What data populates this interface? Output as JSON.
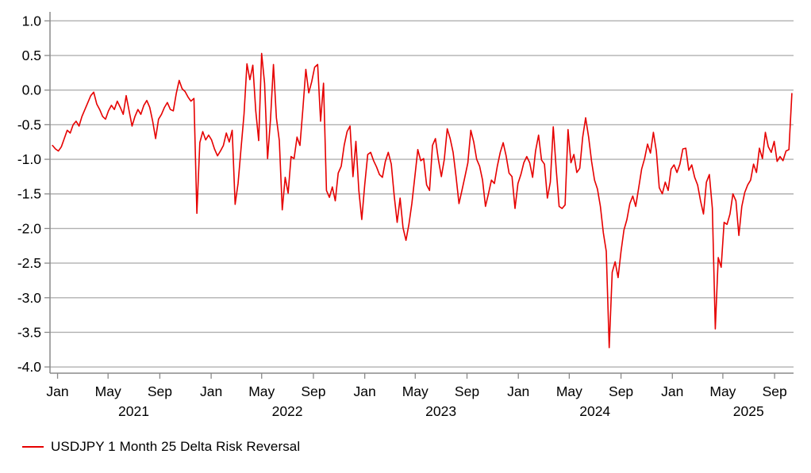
{
  "chart_data": {
    "type": "line",
    "title": "",
    "xlabel": "",
    "ylabel": "",
    "grid": "horizontal",
    "ylim": [
      -4.09,
      1.13
    ],
    "x_domain": [
      "2020-12-14",
      "2025-10-16"
    ],
    "yticks": {
      "values": [
        1.0,
        0.5,
        0.0,
        -0.5,
        -1.0,
        -1.5,
        -2.0,
        -2.5,
        -3.0,
        -3.5,
        -4.0
      ],
      "labels": [
        "1.0",
        "0.5",
        "0.0",
        "-0.5",
        "-1.0",
        "-1.5",
        "-2.0",
        "-2.5",
        "-3.0",
        "-3.5",
        "-4.0"
      ]
    },
    "xticks": [
      {
        "date": "2021-01-01",
        "label": "Jan"
      },
      {
        "date": "2021-05-01",
        "label": "May"
      },
      {
        "date": "2021-09-01",
        "label": "Sep"
      },
      {
        "date": "2022-01-01",
        "label": "Jan"
      },
      {
        "date": "2022-05-01",
        "label": "May"
      },
      {
        "date": "2022-09-01",
        "label": "Sep"
      },
      {
        "date": "2023-01-01",
        "label": "Jan"
      },
      {
        "date": "2023-05-01",
        "label": "May"
      },
      {
        "date": "2023-09-01",
        "label": "Sep"
      },
      {
        "date": "2024-01-01",
        "label": "Jan"
      },
      {
        "date": "2024-05-01",
        "label": "May"
      },
      {
        "date": "2024-09-01",
        "label": "Sep"
      },
      {
        "date": "2025-01-01",
        "label": "Jan"
      },
      {
        "date": "2025-05-01",
        "label": "May"
      },
      {
        "date": "2025-09-01",
        "label": "Sep"
      }
    ],
    "year_labels": [
      {
        "date": "2021-07-01",
        "label": "2021"
      },
      {
        "date": "2022-07-01",
        "label": "2022"
      },
      {
        "date": "2023-07-01",
        "label": "2023"
      },
      {
        "date": "2024-07-01",
        "label": "2024"
      },
      {
        "date": "2025-07-01",
        "label": "2025"
      }
    ],
    "legend": {
      "position": "bottom-left",
      "label": "USDJPY 1 Month 25 Delta Risk Reversal"
    },
    "colors": {
      "line": "#e60000",
      "grid": "#b0b0b0",
      "axis": "#8a8a8a",
      "text": "#000000"
    },
    "series": [
      {
        "name": "USDJPY 1 Month 25 Delta Risk Reversal",
        "color": "#e60000",
        "x_start": "2020-12-20",
        "x_step_days": 7,
        "values": [
          -0.8,
          -0.85,
          -0.88,
          -0.82,
          -0.7,
          -0.58,
          -0.62,
          -0.5,
          -0.45,
          -0.52,
          -0.38,
          -0.28,
          -0.18,
          -0.08,
          -0.03,
          -0.2,
          -0.28,
          -0.38,
          -0.42,
          -0.3,
          -0.22,
          -0.28,
          -0.16,
          -0.25,
          -0.35,
          -0.08,
          -0.3,
          -0.52,
          -0.38,
          -0.28,
          -0.35,
          -0.22,
          -0.15,
          -0.25,
          -0.45,
          -0.7,
          -0.42,
          -0.35,
          -0.25,
          -0.18,
          -0.28,
          -0.3,
          -0.05,
          0.14,
          0.02,
          -0.02,
          -0.1,
          -0.16,
          -0.12,
          -1.78,
          -0.76,
          -0.6,
          -0.72,
          -0.65,
          -0.72,
          -0.85,
          -0.95,
          -0.88,
          -0.8,
          -0.62,
          -0.75,
          -0.58,
          -1.65,
          -1.35,
          -0.85,
          -0.35,
          0.38,
          0.15,
          0.36,
          -0.3,
          -0.73,
          0.53,
          0.1,
          -0.99,
          -0.42,
          0.37,
          -0.4,
          -0.73,
          -1.73,
          -1.26,
          -1.49,
          -0.96,
          -0.99,
          -0.68,
          -0.8,
          -0.27,
          0.3,
          -0.04,
          0.12,
          0.33,
          0.37,
          -0.45,
          0.1,
          -1.45,
          -1.55,
          -1.4,
          -1.6,
          -1.2,
          -1.1,
          -0.8,
          -0.6,
          -0.52,
          -1.25,
          -0.74,
          -1.45,
          -1.87,
          -1.37,
          -0.93,
          -0.9,
          -1.02,
          -1.11,
          -1.22,
          -1.26,
          -1.03,
          -0.9,
          -1.07,
          -1.53,
          -1.91,
          -1.56,
          -1.99,
          -2.17,
          -1.94,
          -1.64,
          -1.25,
          -0.86,
          -1.02,
          -0.99,
          -1.37,
          -1.45,
          -0.8,
          -0.7,
          -1.0,
          -1.25,
          -1.0,
          -0.56,
          -0.7,
          -0.9,
          -1.25,
          -1.64,
          -1.45,
          -1.25,
          -1.05,
          -0.58,
          -0.75,
          -1.0,
          -1.1,
          -1.3,
          -1.68,
          -1.5,
          -1.3,
          -1.35,
          -1.1,
          -0.9,
          -0.76,
          -0.95,
          -1.2,
          -1.25,
          -1.71,
          -1.35,
          -1.22,
          -1.05,
          -0.96,
          -1.05,
          -1.26,
          -0.88,
          -0.65,
          -1.01,
          -1.07,
          -1.56,
          -1.33,
          -0.53,
          -1.14,
          -1.68,
          -1.71,
          -1.66,
          -0.57,
          -1.05,
          -0.93,
          -1.19,
          -1.13,
          -0.68,
          -0.4,
          -0.68,
          -1.03,
          -1.3,
          -1.43,
          -1.68,
          -2.06,
          -2.33,
          -3.72,
          -2.63,
          -2.48,
          -2.71,
          -2.33,
          -2.02,
          -1.87,
          -1.64,
          -1.53,
          -1.68,
          -1.41,
          -1.14,
          -0.99,
          -0.78,
          -0.91,
          -0.61,
          -0.88,
          -1.41,
          -1.5,
          -1.33,
          -1.45,
          -1.14,
          -1.08,
          -1.19,
          -1.07,
          -0.85,
          -0.84,
          -1.16,
          -1.08,
          -1.26,
          -1.37,
          -1.6,
          -1.79,
          -1.33,
          -1.22,
          -1.71,
          -3.45,
          -2.42,
          -2.56,
          -1.91,
          -1.94,
          -1.79,
          -1.5,
          -1.6,
          -2.1,
          -1.68,
          -1.48,
          -1.37,
          -1.3,
          -1.07,
          -1.19,
          -0.84,
          -0.99,
          -0.61,
          -0.82,
          -0.9,
          -0.74,
          -1.03,
          -0.96,
          -1.02,
          -0.88,
          -0.86,
          -0.05
        ]
      }
    ]
  }
}
